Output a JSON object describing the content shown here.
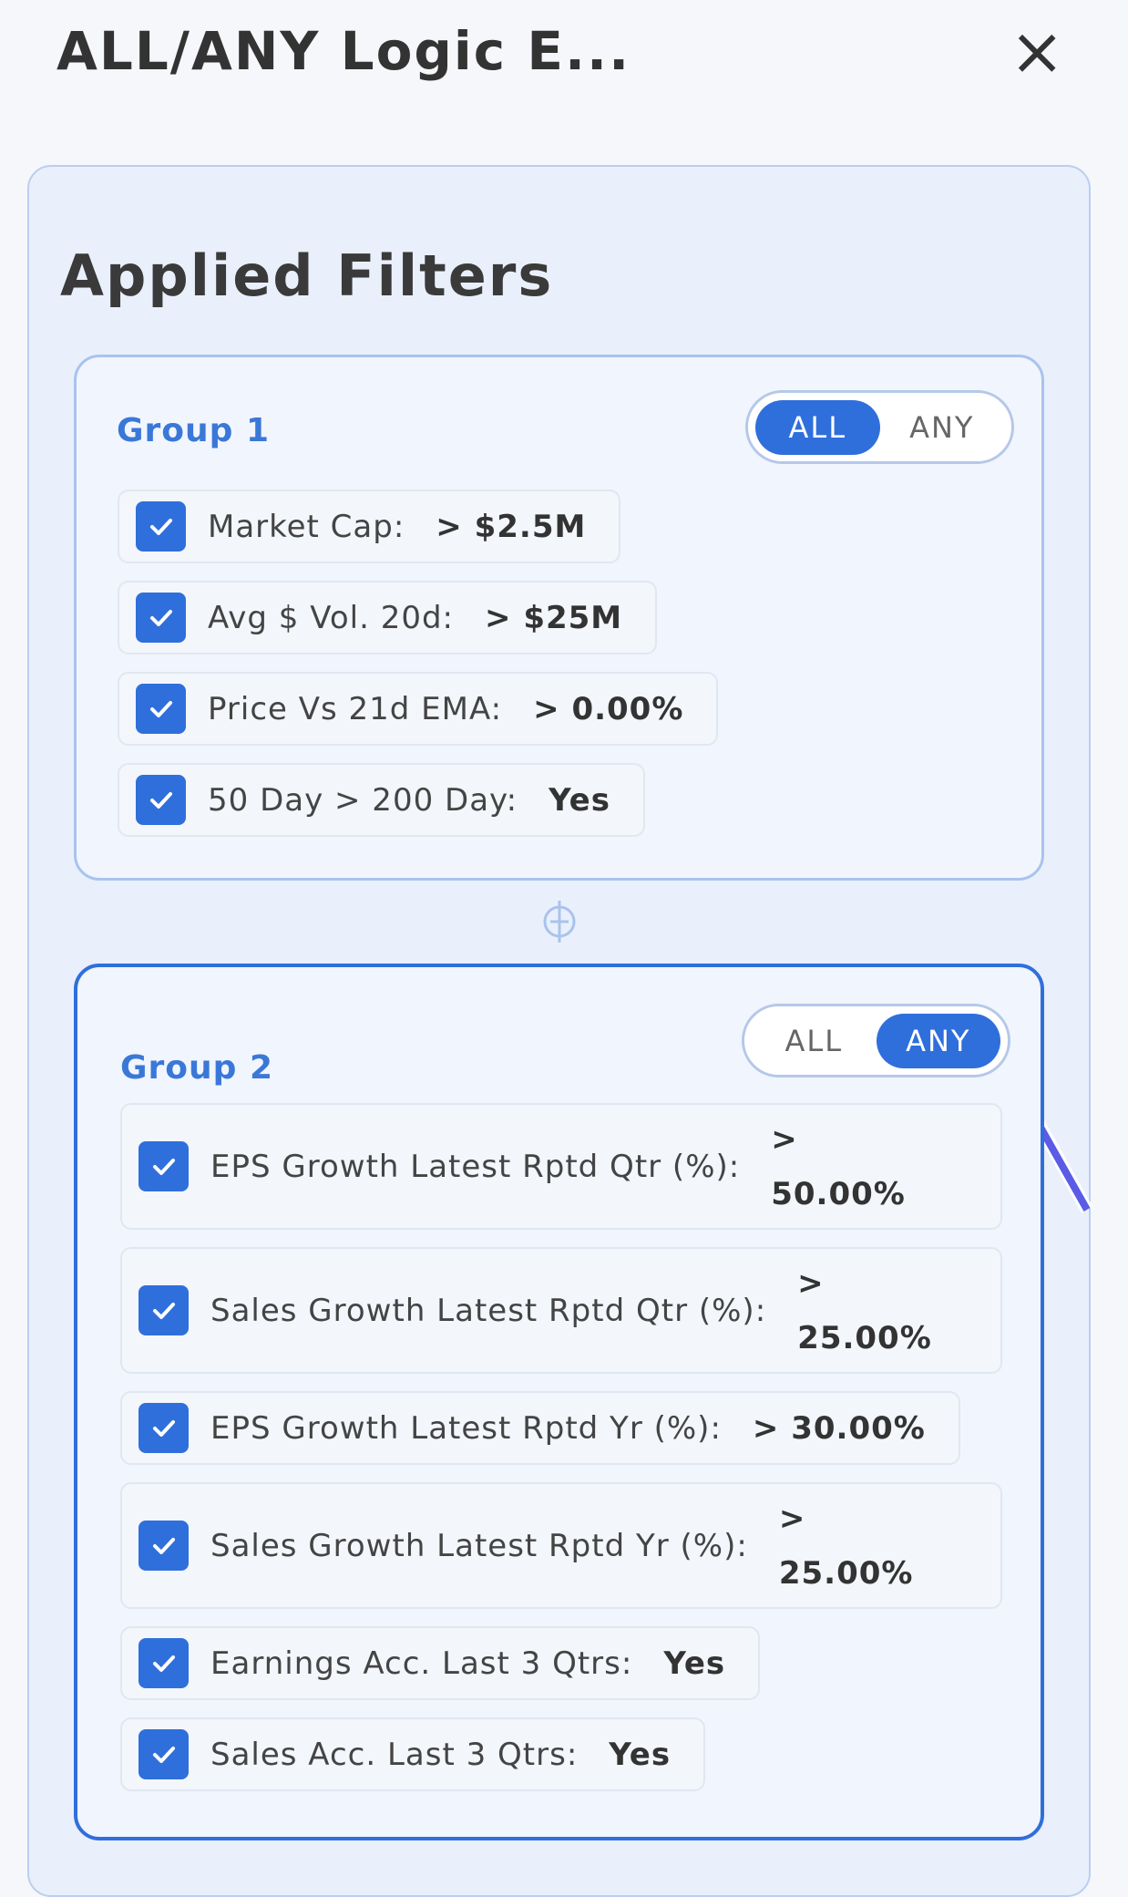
{
  "header": {
    "title": "ALL/ANY Logic E...",
    "close": "×"
  },
  "panel": {
    "title": "Applied Filters",
    "groups": [
      {
        "title": "Group 1",
        "options": [
          "ALL",
          "ANY"
        ],
        "active": 0,
        "filters": [
          {
            "label": "Market Cap:",
            "value": "> $2.5M"
          },
          {
            "label": "Avg $ Vol. 20d:",
            "value": "> $25M"
          },
          {
            "label": "Price Vs 21d EMA:",
            "value": "> 0.00%"
          },
          {
            "label": "50 Day > 200 Day:",
            "value": "Yes"
          }
        ]
      },
      {
        "title": "Group 2",
        "options": [
          "ALL",
          "ANY"
        ],
        "active": 1,
        "filters": [
          {
            "label": "EPS Growth Latest Rptd Qtr (%):",
            "value": "> 50.00%"
          },
          {
            "label": "Sales Growth Latest Rptd Qtr (%):",
            "value": "> 25.00%"
          },
          {
            "label": "EPS Growth Latest Rptd Yr (%):",
            "value": "> 30.00%"
          },
          {
            "label": "Sales Growth Latest Rptd Yr (%):",
            "value": "> 25.00%"
          },
          {
            "label": "Earnings Acc. Last 3 Qtrs:",
            "value": "Yes"
          },
          {
            "label": "Sales Acc. Last 3 Qtrs:",
            "value": "Yes"
          }
        ]
      }
    ]
  }
}
